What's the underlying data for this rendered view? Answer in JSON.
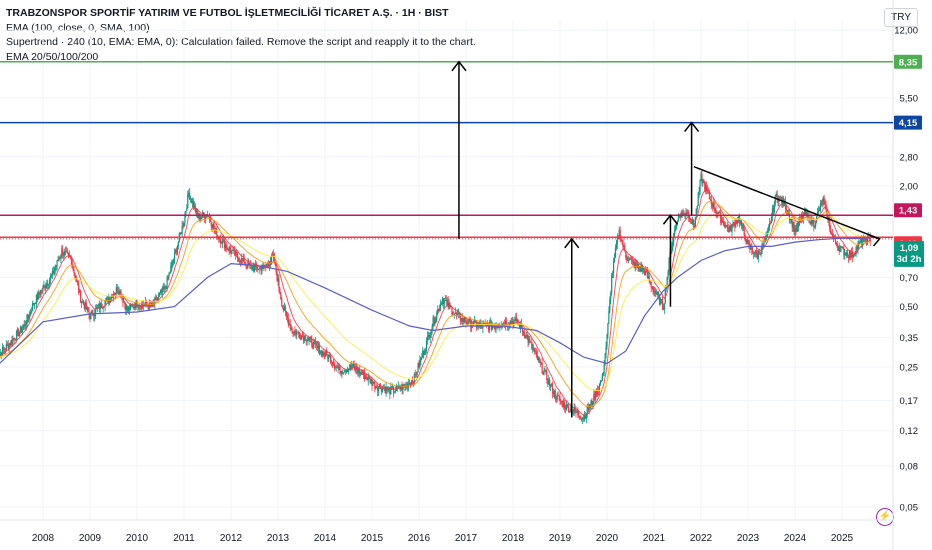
{
  "header": {
    "title": "TRABZONSPOR SPORTİF YATIRIM VE FUTBOL İŞLETMECİLİĞİ TİCARET A.Ş. · 1H · BIST",
    "indicators": [
      "EMA (100, close, 0, SMA, 100)",
      "Supertrend · 240 (10, EMA: EMA, 0): Calculation failed. Remove the script and reapply it to the chart.",
      "EMA 20/50/100/200"
    ],
    "currency": "TRY"
  },
  "chart_data": {
    "type": "line",
    "y_scale": "log",
    "ylim": [
      0.043,
      13.5
    ],
    "y_ticks": [
      "12,00",
      "8,35",
      "5,50",
      "4,15",
      "2,80",
      "2,00",
      "1,43",
      "1,11",
      "1,09",
      "0,70",
      "0,50",
      "0,35",
      "0,25",
      "0,17",
      "0,12",
      "0,08",
      "0,05"
    ],
    "x_ticks": [
      "2008",
      "2009",
      "2010",
      "2011",
      "2012",
      "2013",
      "2014",
      "2015",
      "2016",
      "2017",
      "2018",
      "2019",
      "2020",
      "2021",
      "2022",
      "2023",
      "2024",
      "2025"
    ],
    "series": [
      {
        "kind": "price",
        "x": [
          2007.0,
          2007.3,
          2007.6,
          2007.8,
          2008.0,
          2008.2,
          2008.4,
          2008.6,
          2008.8,
          2009.0,
          2009.2,
          2009.4,
          2009.6,
          2009.8,
          2010.0,
          2010.3,
          2010.6,
          2010.8,
          2011.0,
          2011.1,
          2011.3,
          2011.5,
          2011.7,
          2011.9,
          2012.1,
          2012.3,
          2012.5,
          2012.7,
          2012.9,
          2013.1,
          2013.3,
          2013.6,
          2013.9,
          2014.1,
          2014.3,
          2014.6,
          2014.9,
          2015.1,
          2015.4,
          2015.7,
          2015.9,
          2016.1,
          2016.3,
          2016.5,
          2016.8,
          2017.0,
          2017.3,
          2017.6,
          2017.9,
          2018.1,
          2018.3,
          2018.6,
          2018.9,
          2019.1,
          2019.3,
          2019.5,
          2019.7,
          2019.9,
          2020.0,
          2020.1,
          2020.25,
          2020.4,
          2020.6,
          2020.8,
          2021.0,
          2021.2,
          2021.35,
          2021.5,
          2021.7,
          2021.85,
          2022.0,
          2022.2,
          2022.4,
          2022.6,
          2022.8,
          2023.0,
          2023.2,
          2023.4,
          2023.6,
          2023.8,
          2024.0,
          2024.2,
          2024.4,
          2024.6,
          2024.8,
          2025.0,
          2025.2,
          2025.4,
          2025.6
        ],
        "values": [
          0.28,
          0.33,
          0.4,
          0.52,
          0.62,
          0.72,
          0.95,
          0.85,
          0.55,
          0.45,
          0.5,
          0.55,
          0.62,
          0.48,
          0.52,
          0.5,
          0.62,
          0.9,
          1.35,
          1.85,
          1.4,
          1.45,
          1.15,
          1.0,
          0.9,
          0.82,
          0.78,
          0.78,
          0.88,
          0.5,
          0.38,
          0.35,
          0.3,
          0.28,
          0.24,
          0.25,
          0.22,
          0.2,
          0.19,
          0.2,
          0.22,
          0.3,
          0.42,
          0.55,
          0.45,
          0.42,
          0.4,
          0.4,
          0.42,
          0.42,
          0.35,
          0.25,
          0.18,
          0.16,
          0.15,
          0.14,
          0.17,
          0.22,
          0.35,
          0.7,
          1.2,
          0.9,
          0.8,
          0.75,
          0.6,
          0.5,
          0.95,
          1.4,
          1.5,
          1.25,
          2.2,
          1.7,
          1.4,
          1.2,
          1.4,
          1.0,
          0.9,
          1.1,
          1.8,
          1.6,
          1.2,
          1.45,
          1.3,
          1.7,
          1.1,
          0.95,
          0.9,
          1.05,
          1.09
        ]
      },
      {
        "kind": "ema200",
        "x": [
          2007.0,
          2008.0,
          2009.0,
          2010.0,
          2010.8,
          2011.5,
          2012.0,
          2012.6,
          2013.2,
          2014.0,
          2015.0,
          2015.8,
          2016.3,
          2017.0,
          2017.8,
          2018.5,
          2019.0,
          2019.5,
          2020.0,
          2020.4,
          2020.8,
          2021.2,
          2021.5,
          2022.0,
          2022.5,
          2023.0,
          2023.5,
          2024.0,
          2024.5,
          2025.0,
          2025.6
        ],
        "values": [
          0.25,
          0.42,
          0.46,
          0.47,
          0.5,
          0.7,
          0.82,
          0.8,
          0.75,
          0.62,
          0.48,
          0.4,
          0.38,
          0.4,
          0.4,
          0.38,
          0.33,
          0.28,
          0.26,
          0.3,
          0.45,
          0.6,
          0.7,
          0.85,
          0.95,
          1.0,
          1.0,
          1.05,
          1.08,
          1.1,
          1.09
        ]
      }
    ],
    "hlines": [
      {
        "value": 8.35,
        "label": "8,35",
        "color": "#4caf50"
      },
      {
        "value": 4.15,
        "label": "4,15",
        "color": "#0d47a1"
      },
      {
        "value": 1.43,
        "label": "1,43",
        "color": "#c2185b"
      },
      {
        "value": 1.11,
        "label": "1,11",
        "color": "#f23645"
      }
    ],
    "last_price": {
      "value": "1,09",
      "sub": "3d 2h",
      "color": "#089981"
    }
  },
  "footer": {
    "bolt_icon": "⚡"
  }
}
